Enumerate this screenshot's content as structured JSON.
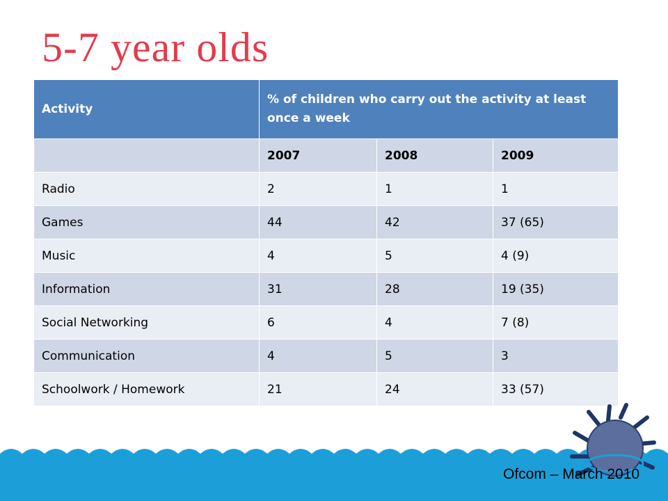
{
  "slide": {
    "title": "5-7 year olds",
    "footer": "Ofcom – March 2010",
    "colors": {
      "title": "#e33b4b",
      "header": "#4f81bd",
      "band_dark": "#cfd7e6",
      "band_light": "#e9edf4",
      "sea": "#1c9fd8",
      "mine": "#5c6e9e"
    }
  },
  "table": {
    "header": [
      "Activity",
      "% of children who carry out the activity at least once a week"
    ],
    "years": [
      "",
      "2007",
      "2008",
      "2009"
    ],
    "rows": [
      [
        "Radio",
        "2",
        "1",
        "1"
      ],
      [
        "Games",
        "44",
        "42",
        "37 (65)"
      ],
      [
        "Music",
        "4",
        "5",
        "4 (9)"
      ],
      [
        "Information",
        "31",
        "28",
        "19 (35)"
      ],
      [
        "Social Networking",
        "6",
        "4",
        "7 (8)"
      ],
      [
        "Communication",
        "4",
        "5",
        "3"
      ],
      [
        "Schoolwork / Homework",
        "21",
        "24",
        "33 (57)"
      ]
    ]
  },
  "decoration": {
    "icon": "sea-mine-icon"
  }
}
